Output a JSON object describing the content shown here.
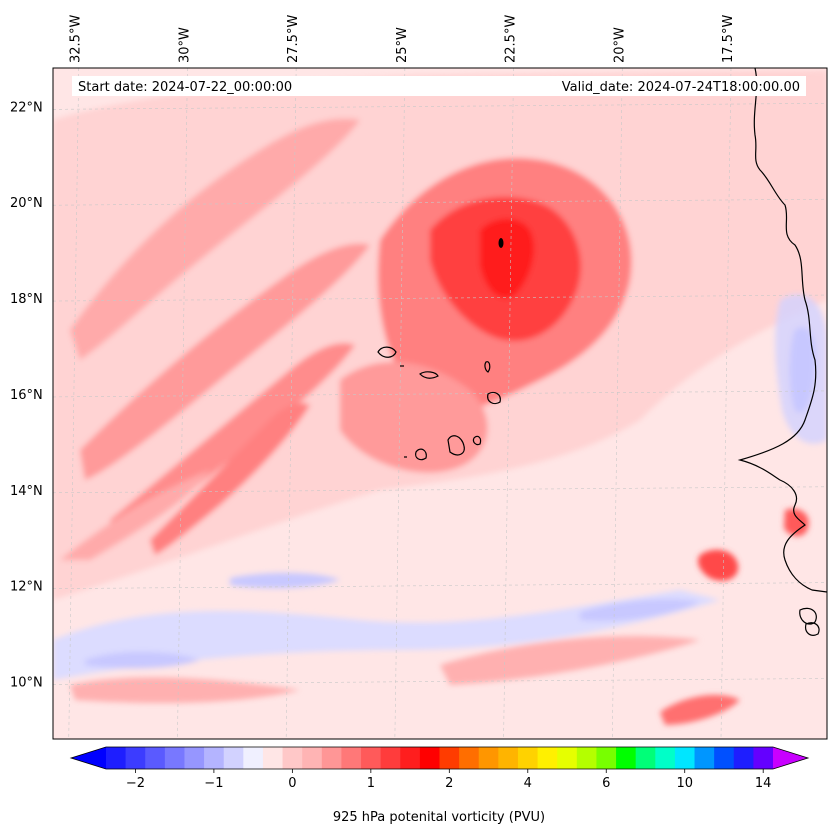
{
  "map": {
    "start_label": "Start date: 2024-07-22_00:00:00",
    "valid_label": "Valid_date: 2024-07-24T18:00:00.00",
    "extent": {
      "lon_min": -33.0,
      "lon_max": -15.2,
      "lat_min": 8.8,
      "lat_max": 22.8
    },
    "lon_ticks": [
      {
        "value": -32.5,
        "label": "32.5°W"
      },
      {
        "value": -30.0,
        "label": "30°W"
      },
      {
        "value": -27.5,
        "label": "27.5°W"
      },
      {
        "value": -25.0,
        "label": "25°W"
      },
      {
        "value": -22.5,
        "label": "22.5°W"
      },
      {
        "value": -20.0,
        "label": "20°W"
      },
      {
        "value": -17.5,
        "label": "17.5°W"
      }
    ],
    "lat_ticks": [
      {
        "value": 22,
        "label": "22°N"
      },
      {
        "value": 20,
        "label": "20°N"
      },
      {
        "value": 18,
        "label": "18°N"
      },
      {
        "value": 16,
        "label": "16°N"
      },
      {
        "value": 14,
        "label": "14°N"
      },
      {
        "value": 12,
        "label": "12°N"
      },
      {
        "value": 10,
        "label": "10°N"
      }
    ],
    "background_color": "#ffe6e6",
    "grid_color": "#c8c8c8"
  },
  "field": {
    "variable": "925 hPa potential vorticity",
    "bands": [
      {
        "region": "NW diagonal streaks",
        "level": 0.8,
        "color": "#ff9a9a"
      },
      {
        "region": "Central-north maximum",
        "level": 1.6,
        "color": "#ff3a3a"
      },
      {
        "region": "Central core",
        "level": 2.0,
        "color": "#ff1a1a"
      },
      {
        "region": "Southern zonal negative band",
        "level": -0.3,
        "color": "#c8c8ff"
      },
      {
        "region": "Coastal negative patch",
        "level": -0.6,
        "color": "#9a9aff"
      },
      {
        "region": "SE coastal positive blob",
        "level": 1.4,
        "color": "#ff4a4a"
      }
    ]
  },
  "colorbar": {
    "title": "925 hPa potenital vorticity (PVU)",
    "colors": [
      "#1e1eff",
      "#3c3cff",
      "#5a5aff",
      "#7878ff",
      "#9696ff",
      "#b4b4ff",
      "#d2d2ff",
      "#f0f0ff",
      "#ffe6e6",
      "#ffc8c8",
      "#ffb4b4",
      "#ff9696",
      "#ff7878",
      "#ff5a5a",
      "#ff3c3c",
      "#ff1e1e",
      "#ff0000",
      "#ff3c00",
      "#ff6e00",
      "#ff9600",
      "#ffb400",
      "#ffd200",
      "#fff000",
      "#e6ff00",
      "#b4ff00",
      "#78ff00",
      "#00ff00",
      "#00ff78",
      "#00ffc8",
      "#00e6ff",
      "#0096ff",
      "#0050ff",
      "#1e1eff",
      "#6400ff"
    ],
    "under_color": "#0000ff",
    "over_color": "#c800ff",
    "ticks": [
      {
        "index": 1.5,
        "label": "−2"
      },
      {
        "index": 5.5,
        "label": "−1"
      },
      {
        "index": 9.5,
        "label": "0"
      },
      {
        "index": 13.5,
        "label": "1"
      },
      {
        "index": 17.5,
        "label": "2"
      },
      {
        "index": 21.5,
        "label": "4"
      },
      {
        "index": 25.5,
        "label": "6"
      },
      {
        "index": 29.5,
        "label": "10"
      },
      {
        "index": 33.5,
        "label": "14"
      }
    ]
  }
}
